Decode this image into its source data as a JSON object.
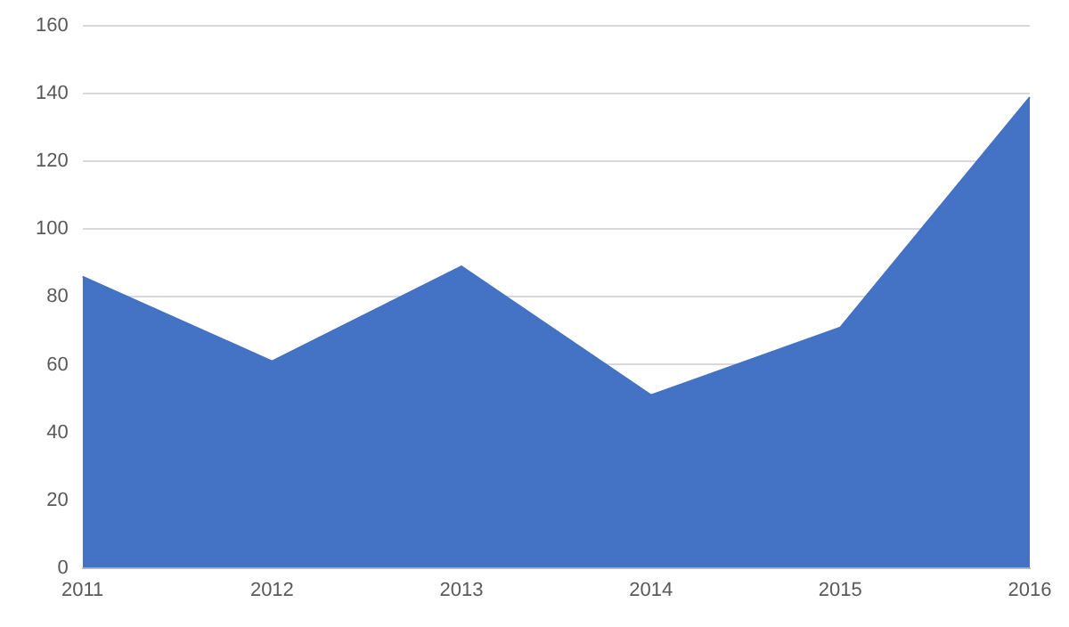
{
  "chart_data": {
    "type": "area",
    "categories": [
      "2011",
      "2012",
      "2013",
      "2014",
      "2015",
      "2016"
    ],
    "series": [
      {
        "color": "#4472c4",
        "values": [
          86,
          61,
          89,
          51,
          71,
          139
        ]
      }
    ],
    "ylim": [
      0,
      160
    ],
    "yticks": [
      0,
      20,
      40,
      60,
      80,
      100,
      120,
      140,
      160
    ],
    "grid": "y",
    "legend": false
  }
}
